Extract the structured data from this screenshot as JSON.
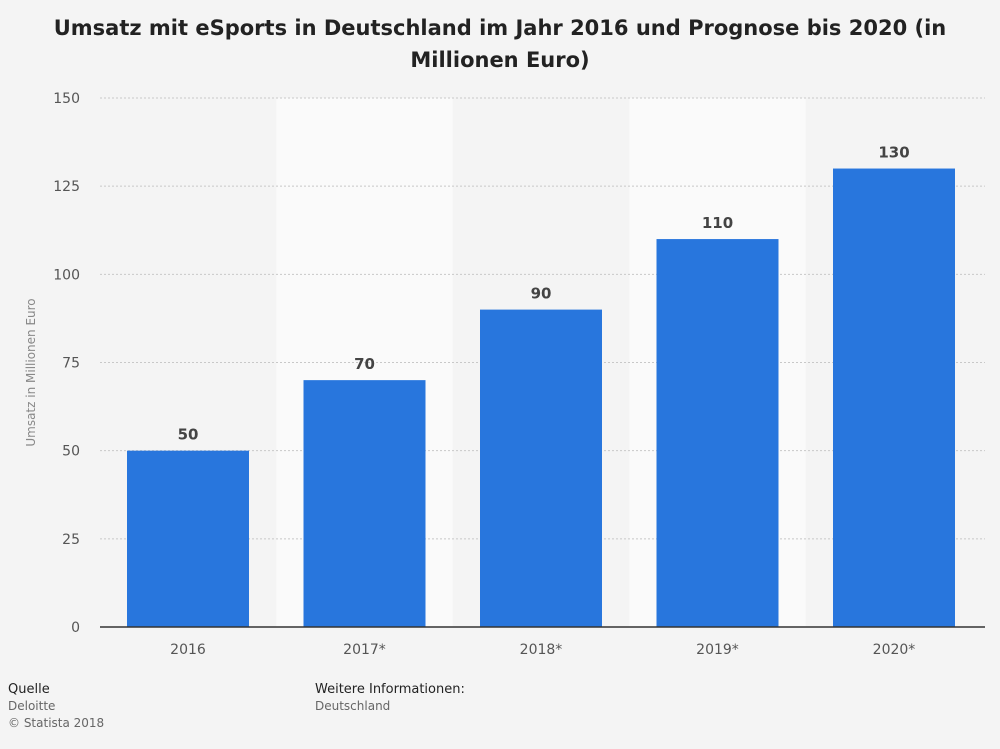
{
  "title": "Umsatz mit eSports in Deutschland im Jahr 2016 und Prognose bis 2020 (in Millionen Euro)",
  "colors": {
    "bar": "#2876dd",
    "band": "#fafafa",
    "grid": "#c8c8c8",
    "axis": "#333333",
    "tick_text": "#555555",
    "label_text": "#444444"
  },
  "chart_data": {
    "type": "bar",
    "categories": [
      "2016",
      "2017*",
      "2018*",
      "2019*",
      "2020*"
    ],
    "values": [
      50,
      70,
      90,
      110,
      130
    ],
    "data_labels": [
      "50",
      "70",
      "90",
      "110",
      "130"
    ],
    "title": "Umsatz mit eSports in Deutschland im Jahr 2016 und Prognose bis 2020 (in Millionen Euro)",
    "xlabel": "",
    "ylabel": "Umsatz in Millionen Euro",
    "ylim": [
      0,
      150
    ],
    "yticks": [
      0,
      25,
      50,
      75,
      100,
      125,
      150
    ],
    "ytick_labels": [
      "0",
      "25",
      "50",
      "75",
      "100",
      "125",
      "150"
    ],
    "grid": true,
    "legend": "none"
  },
  "footer": {
    "source_heading": "Quelle",
    "source": "Deloitte",
    "copyright": "© Statista 2018",
    "info_heading": "Weitere Informationen:",
    "info": "Deutschland"
  }
}
